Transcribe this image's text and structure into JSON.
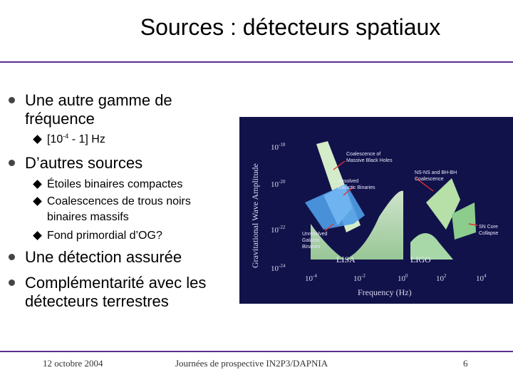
{
  "slide": {
    "title": "Sources : détecteurs spatiaux",
    "bullets": [
      {
        "lines": [
          "Une autre gamme de",
          "fréquence"
        ]
      },
      {
        "lines": [
          "D’autres sources"
        ]
      },
      {
        "lines": [
          "Une détection assurée"
        ]
      },
      {
        "lines": [
          "Complémentarité avec les",
          "détecteurs terrestres"
        ]
      }
    ],
    "sub_freq": {
      "prefix": "[10",
      "exp": "-4",
      "suffix": " - 1] Hz"
    },
    "sub_sources": [
      {
        "lines": [
          "Étoiles binaires compactes"
        ]
      },
      {
        "lines": [
          "Coalescences de trous noirs",
          "binaires massifs"
        ]
      },
      {
        "lines": [
          "Fond primordial d’OG?"
        ]
      }
    ]
  },
  "figure": {
    "ylabel": "Gravitational Wave Amplitude",
    "xlabel": "Frequency (Hz)",
    "y_ticks": [
      {
        "base": "10",
        "exp": "-18"
      },
      {
        "base": "10",
        "exp": "-20"
      },
      {
        "base": "10",
        "exp": "-22"
      },
      {
        "base": "10",
        "exp": "-24"
      }
    ],
    "x_ticks": [
      {
        "base": "10",
        "exp": "-4"
      },
      {
        "base": "10",
        "exp": "-2"
      },
      {
        "base": "10",
        "exp": "0"
      },
      {
        "base": "10",
        "exp": "2"
      },
      {
        "base": "10",
        "exp": "4"
      }
    ],
    "labels": {
      "massive_bh": [
        "Coalescence of",
        "Massive Black Holes"
      ],
      "resolved_galactic": [
        "Resolved",
        "Galactic Binaries"
      ],
      "unresolved_galactic": [
        "Unresolved",
        "Galactic",
        "Binaries"
      ],
      "ns_bh": [
        "NS-NS and BH-BH",
        "Coalescence"
      ],
      "sn_core": [
        "SN Core",
        "Collapse"
      ],
      "lisa": "LISA",
      "ligo": "LIGO"
    },
    "colors": {
      "lisa_region": "#c8e6c0",
      "ligo_region": "#a8d8a8",
      "galactic": "#4f9fe8",
      "arrow": "#e03030"
    }
  },
  "footer": {
    "date": "12 octobre 2004",
    "event": "Journées de prospective IN2P3/DAPNIA",
    "page": "6"
  }
}
